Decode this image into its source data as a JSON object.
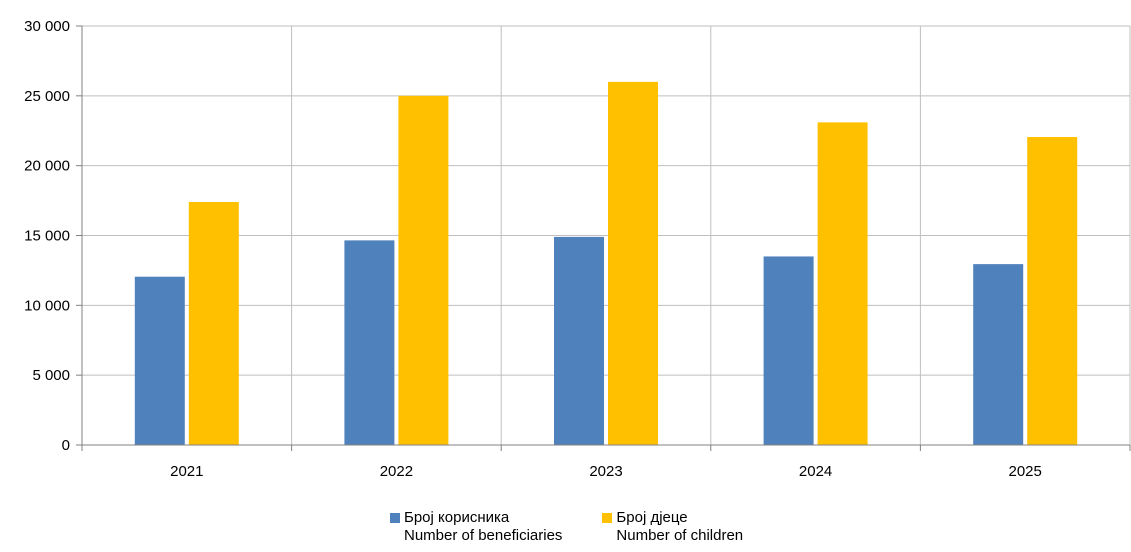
{
  "chart_data": {
    "type": "bar",
    "categories": [
      "2021",
      "2022",
      "2023",
      "2024",
      "2025"
    ],
    "series": [
      {
        "name": "Број корисника",
        "name_en": "Number of beneficiaries",
        "color": "#4F81BD",
        "values": [
          12050,
          14650,
          14900,
          13500,
          12950
        ]
      },
      {
        "name": "Број дјеце",
        "name_en": "Number of children",
        "color": "#FFC000",
        "values": [
          17400,
          25000,
          26000,
          23100,
          22050
        ]
      }
    ],
    "ylim": [
      0,
      30000
    ],
    "yticks": [
      0,
      5000,
      10000,
      15000,
      20000,
      25000,
      30000
    ],
    "ytick_labels": [
      "0",
      "5 000",
      "10 000",
      "15 000",
      "20 000",
      "25 000",
      "30 000"
    ],
    "grid": true,
    "legend_position": "bottom-center"
  }
}
